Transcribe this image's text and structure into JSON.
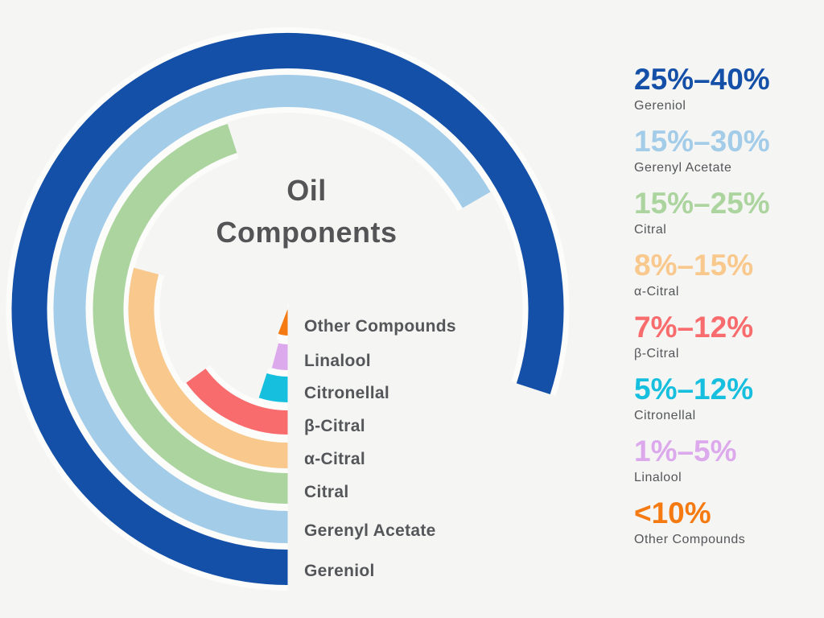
{
  "title": {
    "line1": "Oil",
    "line2": "Components"
  },
  "colors": {
    "background": "#f5f5f3",
    "ring_separator": "#fcfcfb",
    "title_text": "#545457",
    "label_text": "#54565a"
  },
  "chart_data": {
    "type": "radial-bar",
    "title": "Oil Components",
    "value_unit": "percent range of oil composition",
    "rings_ordered_outer_to_inner": true,
    "start_position": "bottom",
    "sweep_direction": "counterclockwise-through-left-top-right",
    "components": [
      {
        "name": "Gereniol",
        "range": "25%–40%",
        "sweep_deg": 288,
        "color": "#1450a8"
      },
      {
        "name": "Gerenyl Acetate",
        "range": "15%–30%",
        "sweep_deg": 240,
        "color": "#a3cce9"
      },
      {
        "name": "Citral",
        "range": "15%–25%",
        "sweep_deg": 162,
        "color": "#abd49e"
      },
      {
        "name": "α-Citral",
        "range": "8%–15%",
        "sweep_deg": 105,
        "color": "#f8c88c"
      },
      {
        "name": "β-Citral",
        "range": "7%–12%",
        "sweep_deg": 54,
        "color": "#f96c6e"
      },
      {
        "name": "Citronellal",
        "range": "5%–12%",
        "sweep_deg": 18,
        "color": "#17bfdf"
      },
      {
        "name": "Linalool",
        "range": "1%–5%",
        "sweep_deg": 15,
        "color": "#dcaaec"
      },
      {
        "name": "Other Compounds",
        "range": "<10%",
        "sweep_deg": 21,
        "color": "#f57a12"
      }
    ]
  }
}
